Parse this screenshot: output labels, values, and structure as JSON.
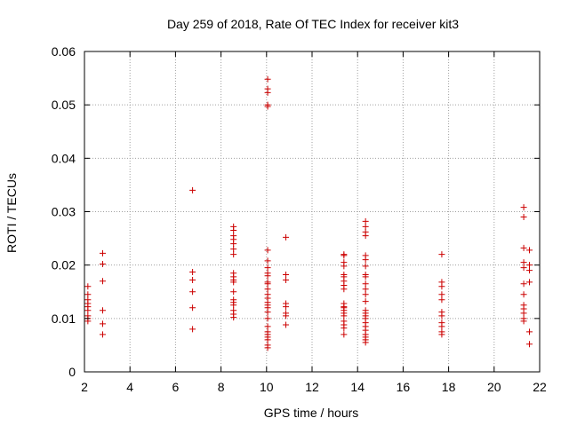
{
  "chart_data": {
    "type": "scatter",
    "title": "Day 259 of 2018, Rate Of TEC Index for receiver kit3",
    "xlabel": "GPS time / hours",
    "ylabel": "ROTI / TECUs",
    "xlim": [
      2,
      22
    ],
    "ylim": [
      0,
      0.06
    ],
    "xticks": [
      2,
      4,
      6,
      8,
      10,
      12,
      14,
      16,
      18,
      20,
      22
    ],
    "xtick_labels": [
      "2",
      "4",
      "6",
      "8",
      "10",
      "12",
      "14",
      "16",
      "18",
      "20",
      "22"
    ],
    "yticks": [
      0,
      0.01,
      0.02,
      0.03,
      0.04,
      0.05,
      0.06
    ],
    "ytick_labels": [
      "0",
      "0.01",
      "0.02",
      "0.03",
      "0.04",
      "0.05",
      "0.06"
    ],
    "grid": true,
    "marker": "+",
    "color": "#cc0000",
    "series": [
      {
        "name": "ROTI",
        "points": [
          [
            2.15,
            0.016
          ],
          [
            2.15,
            0.0145
          ],
          [
            2.15,
            0.0135
          ],
          [
            2.15,
            0.0128
          ],
          [
            2.15,
            0.0122
          ],
          [
            2.15,
            0.0115
          ],
          [
            2.15,
            0.0105
          ],
          [
            2.15,
            0.01
          ],
          [
            2.15,
            0.0095
          ],
          [
            2.8,
            0.0222
          ],
          [
            2.8,
            0.0202
          ],
          [
            2.8,
            0.017
          ],
          [
            2.8,
            0.0115
          ],
          [
            2.8,
            0.009
          ],
          [
            2.8,
            0.007
          ],
          [
            6.75,
            0.034
          ],
          [
            6.75,
            0.0187
          ],
          [
            6.75,
            0.0172
          ],
          [
            6.75,
            0.015
          ],
          [
            6.75,
            0.012
          ],
          [
            6.75,
            0.008
          ],
          [
            8.55,
            0.0272
          ],
          [
            8.55,
            0.0265
          ],
          [
            8.55,
            0.0255
          ],
          [
            8.55,
            0.0248
          ],
          [
            8.55,
            0.024
          ],
          [
            8.55,
            0.023
          ],
          [
            8.55,
            0.022
          ],
          [
            8.55,
            0.0185
          ],
          [
            8.55,
            0.0178
          ],
          [
            8.55,
            0.0172
          ],
          [
            8.55,
            0.0168
          ],
          [
            8.55,
            0.015
          ],
          [
            8.55,
            0.0135
          ],
          [
            8.55,
            0.013
          ],
          [
            8.55,
            0.0125
          ],
          [
            8.55,
            0.0115
          ],
          [
            8.55,
            0.0108
          ],
          [
            8.55,
            0.0102
          ],
          [
            10.05,
            0.0548
          ],
          [
            10.05,
            0.053
          ],
          [
            10.05,
            0.0523
          ],
          [
            10.05,
            0.05
          ],
          [
            10.05,
            0.0497
          ],
          [
            10.05,
            0.0228
          ],
          [
            10.05,
            0.0208
          ],
          [
            10.05,
            0.0195
          ],
          [
            10.05,
            0.0185
          ],
          [
            10.05,
            0.018
          ],
          [
            10.05,
            0.0168
          ],
          [
            10.05,
            0.0165
          ],
          [
            10.05,
            0.0155
          ],
          [
            10.05,
            0.0145
          ],
          [
            10.05,
            0.0138
          ],
          [
            10.05,
            0.013
          ],
          [
            10.05,
            0.0125
          ],
          [
            10.05,
            0.012
          ],
          [
            10.05,
            0.0112
          ],
          [
            10.05,
            0.01
          ],
          [
            10.05,
            0.0085
          ],
          [
            10.05,
            0.0075
          ],
          [
            10.05,
            0.007
          ],
          [
            10.05,
            0.0065
          ],
          [
            10.05,
            0.006
          ],
          [
            10.05,
            0.005
          ],
          [
            10.05,
            0.0045
          ],
          [
            10.85,
            0.0252
          ],
          [
            10.85,
            0.0182
          ],
          [
            10.85,
            0.0172
          ],
          [
            10.85,
            0.0128
          ],
          [
            10.85,
            0.0122
          ],
          [
            10.85,
            0.011
          ],
          [
            10.85,
            0.0105
          ],
          [
            10.85,
            0.0088
          ],
          [
            13.4,
            0.022
          ],
          [
            13.4,
            0.0218
          ],
          [
            13.4,
            0.0205
          ],
          [
            13.4,
            0.0198
          ],
          [
            13.4,
            0.0182
          ],
          [
            13.4,
            0.0178
          ],
          [
            13.4,
            0.017
          ],
          [
            13.4,
            0.0162
          ],
          [
            13.4,
            0.0155
          ],
          [
            13.4,
            0.0128
          ],
          [
            13.4,
            0.0122
          ],
          [
            13.4,
            0.012
          ],
          [
            13.4,
            0.0115
          ],
          [
            13.4,
            0.011
          ],
          [
            13.4,
            0.0105
          ],
          [
            13.4,
            0.0095
          ],
          [
            13.4,
            0.0088
          ],
          [
            13.4,
            0.0082
          ],
          [
            13.4,
            0.007
          ],
          [
            14.35,
            0.0282
          ],
          [
            14.35,
            0.0272
          ],
          [
            14.35,
            0.0262
          ],
          [
            14.35,
            0.0255
          ],
          [
            14.35,
            0.0218
          ],
          [
            14.35,
            0.021
          ],
          [
            14.35,
            0.0198
          ],
          [
            14.35,
            0.0182
          ],
          [
            14.35,
            0.0178
          ],
          [
            14.35,
            0.0165
          ],
          [
            14.35,
            0.0155
          ],
          [
            14.35,
            0.0145
          ],
          [
            14.35,
            0.0132
          ],
          [
            14.35,
            0.0115
          ],
          [
            14.35,
            0.011
          ],
          [
            14.35,
            0.0105
          ],
          [
            14.35,
            0.01
          ],
          [
            14.35,
            0.0092
          ],
          [
            14.35,
            0.0085
          ],
          [
            14.35,
            0.0078
          ],
          [
            14.35,
            0.007
          ],
          [
            14.35,
            0.0065
          ],
          [
            14.35,
            0.006
          ],
          [
            14.35,
            0.0055
          ],
          [
            17.7,
            0.022
          ],
          [
            17.7,
            0.0168
          ],
          [
            17.7,
            0.016
          ],
          [
            17.7,
            0.0145
          ],
          [
            17.7,
            0.0135
          ],
          [
            17.7,
            0.0112
          ],
          [
            17.7,
            0.0105
          ],
          [
            17.7,
            0.0092
          ],
          [
            17.7,
            0.0085
          ],
          [
            17.7,
            0.0075
          ],
          [
            17.7,
            0.007
          ],
          [
            21.3,
            0.0308
          ],
          [
            21.3,
            0.029
          ],
          [
            21.3,
            0.0232
          ],
          [
            21.3,
            0.0205
          ],
          [
            21.3,
            0.0195
          ],
          [
            21.3,
            0.0165
          ],
          [
            21.3,
            0.0145
          ],
          [
            21.3,
            0.0125
          ],
          [
            21.3,
            0.0118
          ],
          [
            21.3,
            0.011
          ],
          [
            21.3,
            0.01
          ],
          [
            21.3,
            0.0095
          ],
          [
            21.55,
            0.0228
          ],
          [
            21.55,
            0.02
          ],
          [
            21.55,
            0.019
          ],
          [
            21.55,
            0.0168
          ],
          [
            21.55,
            0.0075
          ],
          [
            21.55,
            0.0052
          ]
        ]
      }
    ]
  }
}
